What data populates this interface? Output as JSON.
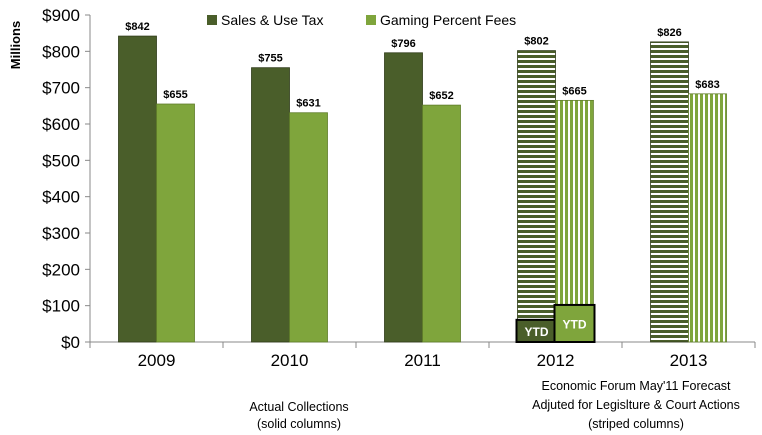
{
  "chart_data": {
    "type": "bar",
    "title": "",
    "ylabel": "Millions",
    "xlabel": "",
    "ylim": [
      0,
      900
    ],
    "yticks": [
      "$0",
      "$100",
      "$200",
      "$300",
      "$400",
      "$500",
      "$600",
      "$700",
      "$800",
      "$900"
    ],
    "grid": false,
    "legend_position": "top",
    "categories": [
      "2009",
      "2010",
      "2011",
      "2012",
      "2013"
    ],
    "series": [
      {
        "name": "Sales & Use Tax",
        "color": "#4a5e2a",
        "values": [
          842,
          755,
          796,
          802,
          826
        ],
        "labels": [
          "$842",
          "$755",
          "$796",
          "$802",
          "$826"
        ],
        "striped": [
          false,
          false,
          false,
          true,
          true
        ]
      },
      {
        "name": "Gaming Percent Fees",
        "color": "#7fa53c",
        "values": [
          655,
          631,
          652,
          665,
          683
        ],
        "labels": [
          "$655",
          "$631",
          "$652",
          "$665",
          "$683"
        ],
        "striped": [
          false,
          false,
          false,
          true,
          true
        ]
      }
    ],
    "ytd": {
      "category": "2012",
      "label": "YTD",
      "sales_value": 61,
      "gaming_value": 102
    },
    "annotations": {
      "actual_line1": "Actual Collections",
      "actual_line2": "(solid columns)",
      "forecast_line1": "Economic Forum May'11 Forecast",
      "forecast_line2": "Adjuted for Legislture & Court Actions",
      "forecast_line3": "(striped columns)"
    }
  }
}
